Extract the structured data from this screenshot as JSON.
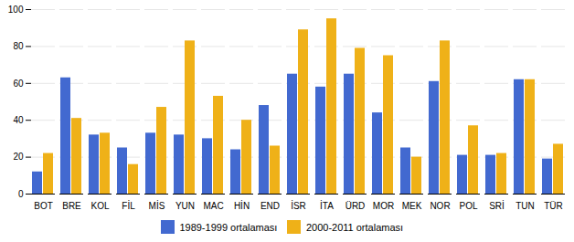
{
  "chart_data": {
    "type": "bar",
    "categories": [
      "BOT",
      "BRE",
      "KOL",
      "FİL",
      "MİS",
      "YUN",
      "MAC",
      "HİN",
      "END",
      "İSR",
      "İTA",
      "ÜRD",
      "MOR",
      "MEK",
      "NOR",
      "POL",
      "SRİ",
      "TUN",
      "TÜR"
    ],
    "series": [
      {
        "name": "1989-1999 ortalaması",
        "values": [
          12,
          63,
          32,
          25,
          33,
          32,
          30,
          24,
          48,
          65,
          58,
          65,
          44,
          25,
          61,
          21,
          21,
          62,
          19
        ]
      },
      {
        "name": "2000-2011 ortalaması",
        "values": [
          22,
          41,
          33,
          16,
          47,
          83,
          53,
          40,
          26,
          89,
          95,
          79,
          75,
          20,
          83,
          37,
          22,
          62,
          27
        ]
      }
    ],
    "ylim": [
      0,
      100
    ],
    "yticks": [
      0,
      20,
      40,
      60,
      80,
      100
    ],
    "grid": true,
    "legend": "bottom"
  }
}
